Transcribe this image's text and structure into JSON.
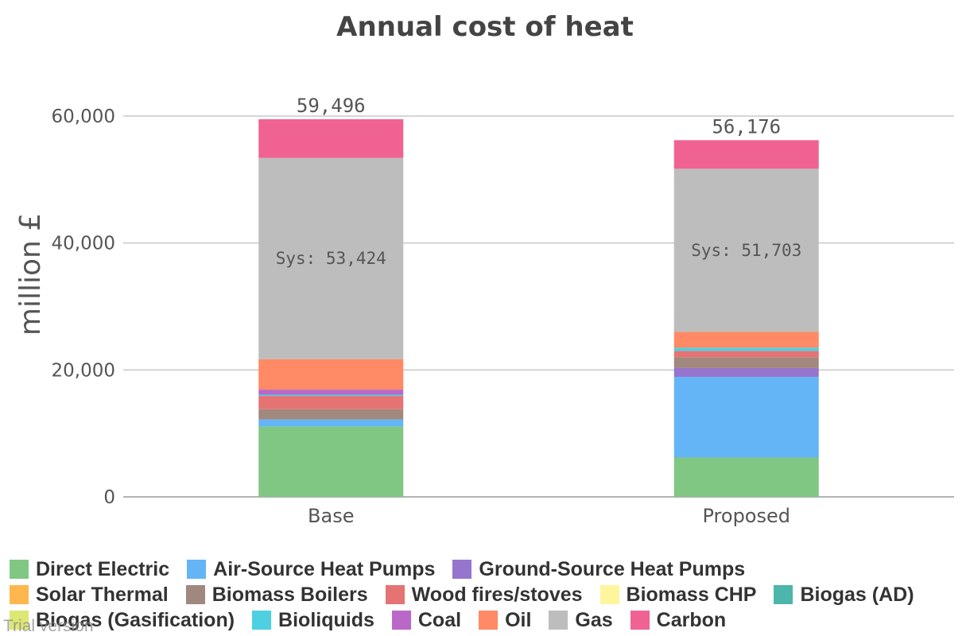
{
  "chart_data": {
    "type": "bar",
    "stacked": true,
    "title": "Annual cost of heat",
    "xlabel": "",
    "ylabel": "million £",
    "ylim": [
      0,
      60000
    ],
    "yticks": [
      "0",
      "20,000",
      "40,000",
      "60,000"
    ],
    "ytick_values": [
      0,
      20000,
      40000,
      60000
    ],
    "grid": true,
    "legend_position": "bottom",
    "categories": [
      "Base",
      "Proposed"
    ],
    "totals": [
      "59,496",
      "56,176"
    ],
    "total_values": [
      59496,
      56176
    ],
    "system_labels": [
      "Sys: 53,424",
      "Sys: 51,703"
    ],
    "series": [
      {
        "name": "Direct Electric",
        "color": "#81c784",
        "values": [
          11100,
          6200
        ]
      },
      {
        "name": "Air-Source Heat Pumps",
        "color": "#64b5f6",
        "values": [
          1100,
          12700
        ]
      },
      {
        "name": "Ground-Source Heat Pumps",
        "color": "#9575cd",
        "values": [
          0,
          1400
        ]
      },
      {
        "name": "Solar Thermal",
        "color": "#ffb74d",
        "values": [
          0,
          0
        ]
      },
      {
        "name": "Biomass Boilers",
        "color": "#a1887f",
        "values": [
          1600,
          1700
        ]
      },
      {
        "name": "Wood fires/stoves",
        "color": "#e57373",
        "values": [
          2100,
          1000
        ]
      },
      {
        "name": "Biomass CHP",
        "color": "#fff59d",
        "values": [
          0,
          0
        ]
      },
      {
        "name": "Biogas (AD)",
        "color": "#4db6ac",
        "values": [
          0,
          0
        ]
      },
      {
        "name": "Biogas (Gasification)",
        "color": "#dce775",
        "values": [
          0,
          0
        ]
      },
      {
        "name": "Bioliquids",
        "color": "#4dd0e1",
        "values": [
          200,
          500
        ]
      },
      {
        "name": "Coal",
        "color": "#ba68c8",
        "values": [
          800,
          0
        ]
      },
      {
        "name": "Oil",
        "color": "#ff8a65",
        "values": [
          4800,
          2500
        ]
      },
      {
        "name": "Gas",
        "color": "#bdbdbd",
        "values": [
          31700,
          25700
        ]
      },
      {
        "name": "Carbon",
        "color": "#f06292",
        "values": [
          6100,
          4500
        ]
      }
    ]
  },
  "watermark": "Trial version"
}
